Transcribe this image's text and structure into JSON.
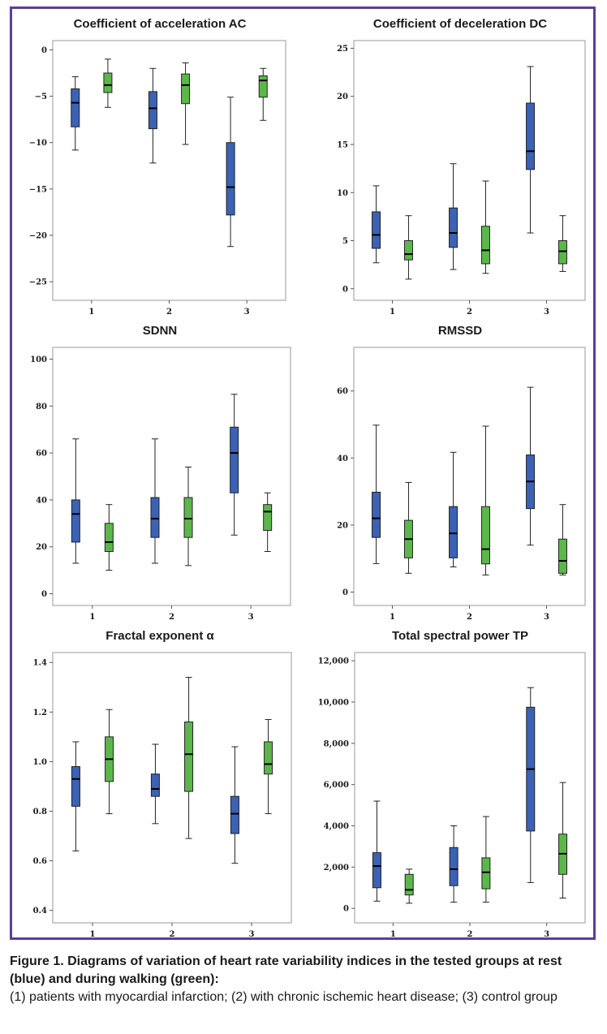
{
  "colors": {
    "rest": "#3b62b4",
    "walking": "#5cb74b",
    "frame": "#5b3e98"
  },
  "figure": {
    "caption_title": "Figure 1. Diagrams of variation of heart rate variability indices in the tested groups at rest (blue) and during walking (green):",
    "caption_body": "(1) patients with myocardial infarction; (2) with chronic ischemic heart disease; (3) control group"
  },
  "chart_data": [
    {
      "type": "boxplot",
      "title": "Coefficient of acceleration AC",
      "categories": [
        "1",
        "2",
        "3"
      ],
      "ylim": [
        -27,
        1
      ],
      "yticks": [
        0,
        -5,
        -10,
        -15,
        -20,
        -25
      ],
      "ytick_labels": [
        "0",
        "−5",
        "−10",
        "−15",
        "−20",
        "−25"
      ],
      "series": [
        {
          "color": "rest",
          "boxes": [
            {
              "min": -10.8,
              "q1": -8.3,
              "median": -5.7,
              "q3": -4.2,
              "max": -2.9
            },
            {
              "min": -12.2,
              "q1": -8.5,
              "median": -6.3,
              "q3": -4.5,
              "max": -2.0
            },
            {
              "min": -21.2,
              "q1": -17.8,
              "median": -14.8,
              "q3": -10.0,
              "max": -5.1
            }
          ]
        },
        {
          "color": "walking",
          "boxes": [
            {
              "min": -6.2,
              "q1": -4.6,
              "median": -3.8,
              "q3": -2.5,
              "max": -1.0
            },
            {
              "min": -10.2,
              "q1": -5.8,
              "median": -3.8,
              "q3": -2.6,
              "max": -1.4
            },
            {
              "min": -7.6,
              "q1": -5.1,
              "median": -3.3,
              "q3": -2.8,
              "max": -2.0
            }
          ]
        }
      ]
    },
    {
      "type": "boxplot",
      "title": "Coefficient of deceleration DC",
      "categories": [
        "1",
        "2",
        "3"
      ],
      "ylim": [
        -1.2,
        25.8
      ],
      "yticks": [
        0,
        5,
        10,
        15,
        20,
        25
      ],
      "ytick_labels": [
        "0",
        "5",
        "10",
        "15",
        "20",
        "25"
      ],
      "series": [
        {
          "color": "rest",
          "boxes": [
            {
              "min": 2.7,
              "q1": 4.2,
              "median": 5.6,
              "q3": 8.0,
              "max": 10.7
            },
            {
              "min": 2.0,
              "q1": 4.3,
              "median": 5.8,
              "q3": 8.4,
              "max": 13.0
            },
            {
              "min": 5.8,
              "q1": 12.4,
              "median": 14.3,
              "q3": 19.3,
              "max": 23.1
            }
          ]
        },
        {
          "color": "walking",
          "boxes": [
            {
              "min": 1.0,
              "q1": 3.0,
              "median": 3.6,
              "q3": 5.0,
              "max": 7.6
            },
            {
              "min": 1.6,
              "q1": 2.6,
              "median": 4.0,
              "q3": 6.5,
              "max": 11.2
            },
            {
              "min": 1.8,
              "q1": 2.6,
              "median": 3.9,
              "q3": 5.0,
              "max": 7.6
            }
          ]
        }
      ]
    },
    {
      "type": "boxplot",
      "title": "SDNN",
      "categories": [
        "1",
        "2",
        "3"
      ],
      "ylim": [
        -5,
        105
      ],
      "yticks": [
        0,
        20,
        40,
        60,
        80,
        100
      ],
      "ytick_labels": [
        "0",
        "20",
        "40",
        "60",
        "80",
        "100"
      ],
      "series": [
        {
          "color": "rest",
          "boxes": [
            {
              "min": 13,
              "q1": 22,
              "median": 34,
              "q3": 40,
              "max": 66
            },
            {
              "min": 13,
              "q1": 24,
              "median": 32,
              "q3": 41,
              "max": 66
            },
            {
              "min": 25,
              "q1": 43,
              "median": 60,
              "q3": 71,
              "max": 85
            }
          ]
        },
        {
          "color": "walking",
          "boxes": [
            {
              "min": 10,
              "q1": 18,
              "median": 22,
              "q3": 30,
              "max": 38
            },
            {
              "min": 12,
              "q1": 24,
              "median": 32,
              "q3": 41,
              "max": 54
            },
            {
              "min": 18,
              "q1": 27,
              "median": 35,
              "q3": 38,
              "max": 43
            }
          ]
        }
      ]
    },
    {
      "type": "boxplot",
      "title": "RMSSD",
      "categories": [
        "1",
        "2",
        "3"
      ],
      "ylim": [
        -4,
        73
      ],
      "yticks": [
        0,
        20,
        40,
        60
      ],
      "ytick_labels": [
        "0",
        "20",
        "40",
        "60"
      ],
      "series": [
        {
          "color": "rest",
          "boxes": [
            {
              "min": 8.5,
              "q1": 16.3,
              "median": 22.0,
              "q3": 29.8,
              "max": 49.8
            },
            {
              "min": 7.5,
              "q1": 10.2,
              "median": 17.5,
              "q3": 25.5,
              "max": 41.7
            },
            {
              "min": 14.0,
              "q1": 24.9,
              "median": 33.0,
              "q3": 40.9,
              "max": 61.1
            }
          ]
        },
        {
          "color": "walking",
          "boxes": [
            {
              "min": 5.6,
              "q1": 10.2,
              "median": 15.8,
              "q3": 21.4,
              "max": 32.7
            },
            {
              "min": 5.1,
              "q1": 8.4,
              "median": 12.8,
              "q3": 25.5,
              "max": 49.5
            },
            {
              "min": 5.1,
              "q1": 5.6,
              "median": 9.3,
              "q3": 15.8,
              "max": 26.1
            }
          ]
        }
      ]
    },
    {
      "type": "boxplot",
      "title": "Fractal exponent α",
      "categories": [
        "1",
        "2",
        "3"
      ],
      "ylim": [
        0.35,
        1.44
      ],
      "yticks": [
        0.4,
        0.6,
        0.8,
        1.0,
        1.2,
        1.4
      ],
      "ytick_labels": [
        "0.4",
        "0.6",
        "0.8",
        "1.0",
        "1.2",
        "1.4"
      ],
      "series": [
        {
          "color": "rest",
          "boxes": [
            {
              "min": 0.64,
              "q1": 0.82,
              "median": 0.93,
              "q3": 0.98,
              "max": 1.08
            },
            {
              "min": 0.75,
              "q1": 0.86,
              "median": 0.89,
              "q3": 0.95,
              "max": 1.07
            },
            {
              "min": 0.59,
              "q1": 0.71,
              "median": 0.79,
              "q3": 0.86,
              "max": 1.06
            }
          ]
        },
        {
          "color": "walking",
          "boxes": [
            {
              "min": 0.79,
              "q1": 0.92,
              "median": 1.01,
              "q3": 1.1,
              "max": 1.21
            },
            {
              "min": 0.69,
              "q1": 0.88,
              "median": 1.03,
              "q3": 1.16,
              "max": 1.34
            },
            {
              "min": 0.79,
              "q1": 0.95,
              "median": 0.99,
              "q3": 1.08,
              "max": 1.17
            }
          ]
        }
      ]
    },
    {
      "type": "boxplot",
      "title": "Total spectral power TP",
      "categories": [
        "1",
        "2",
        "3"
      ],
      "ylim": [
        -700,
        12400
      ],
      "yticks": [
        0,
        2000,
        4000,
        6000,
        8000,
        10000,
        12000
      ],
      "ytick_labels": [
        "0",
        "2,000",
        "4,000",
        "6,000",
        "8,000",
        "10,000",
        "12,000"
      ],
      "series": [
        {
          "color": "rest",
          "boxes": [
            {
              "min": 350,
              "q1": 1000,
              "median": 2050,
              "q3": 2700,
              "max": 5200
            },
            {
              "min": 300,
              "q1": 1100,
              "median": 1900,
              "q3": 2950,
              "max": 4000
            },
            {
              "min": 1250,
              "q1": 3750,
              "median": 6750,
              "q3": 9750,
              "max": 10700
            }
          ]
        },
        {
          "color": "walking",
          "boxes": [
            {
              "min": 250,
              "q1": 650,
              "median": 900,
              "q3": 1650,
              "max": 1900
            },
            {
              "min": 300,
              "q1": 950,
              "median": 1750,
              "q3": 2450,
              "max": 4450
            },
            {
              "min": 500,
              "q1": 1650,
              "median": 2650,
              "q3": 3600,
              "max": 6100
            }
          ]
        }
      ]
    }
  ]
}
